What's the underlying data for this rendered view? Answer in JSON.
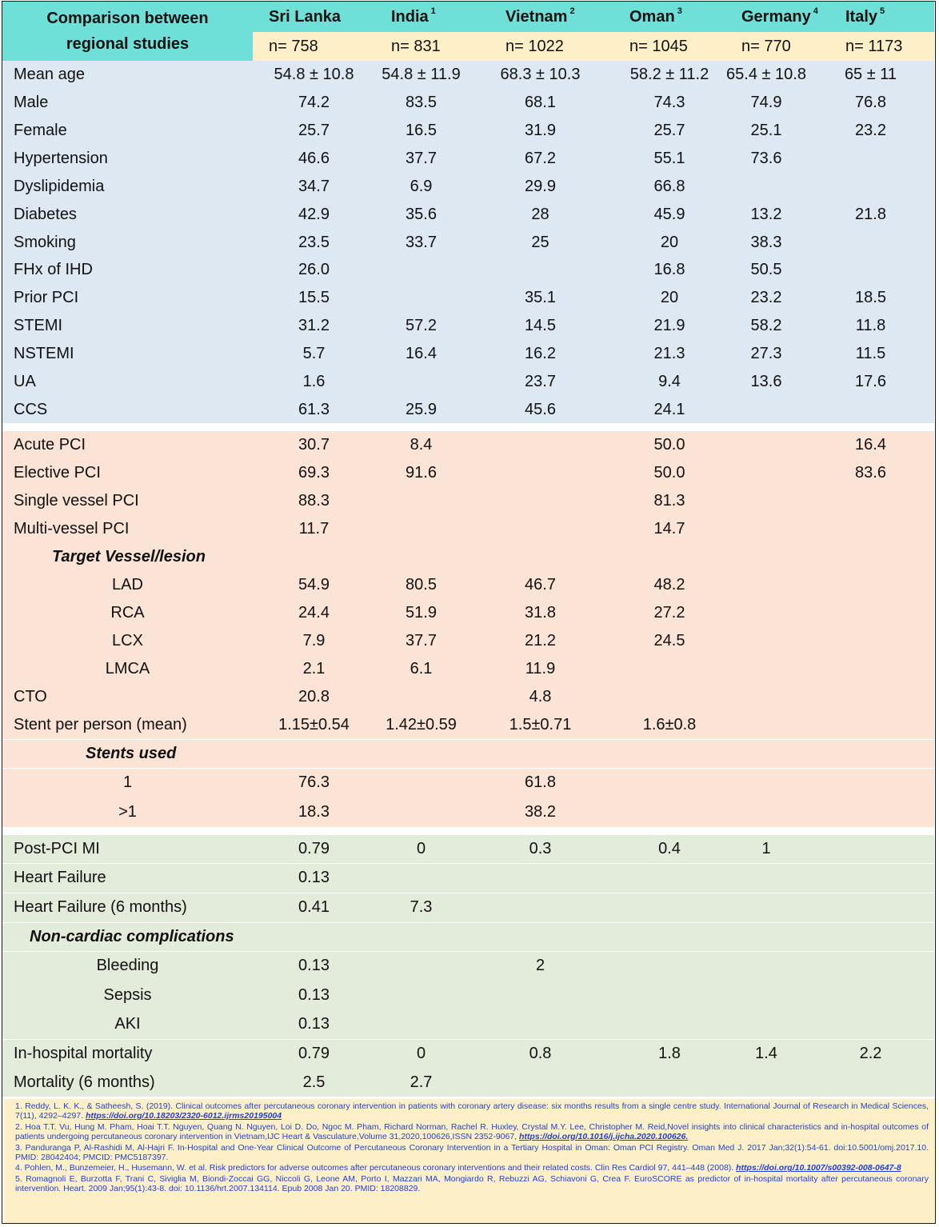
{
  "header": {
    "title_line1": "Comparison between",
    "title_line2": "regional studies",
    "countries": [
      {
        "name": "Sri Lanka",
        "sup": "",
        "n": "n= 758"
      },
      {
        "name": "India",
        "sup": "1",
        "n": "n= 831"
      },
      {
        "name": "Vietnam",
        "sup": "2",
        "n": "n= 1022"
      },
      {
        "name": "Oman",
        "sup": "3",
        "n": "n= 1045"
      },
      {
        "name": "Germany",
        "sup": "4",
        "n": "n= 770"
      },
      {
        "name": "Italy",
        "sup": "5",
        "n": "n= 1173"
      }
    ]
  },
  "sections": [
    {
      "name": "demographics",
      "color": "#dde8f3",
      "rows": [
        {
          "label": "Mean age",
          "values": [
            "54.8 ± 10.8",
            "54.8 ± 11.9",
            "68.3 ± 10.3",
            "58.2 ± 11.2",
            "65.4 ± 10.8",
            "65 ± 11"
          ]
        },
        {
          "label": "Male",
          "values": [
            "74.2",
            "83.5",
            "68.1",
            "74.3",
            "74.9",
            "76.8"
          ]
        },
        {
          "label": "Female",
          "values": [
            "25.7",
            "16.5",
            "31.9",
            "25.7",
            "25.1",
            "23.2"
          ]
        },
        {
          "label": "Hypertension",
          "values": [
            "46.6",
            "37.7",
            "67.2",
            "55.1",
            "73.6",
            ""
          ]
        },
        {
          "label": "Dyslipidemia",
          "values": [
            "34.7",
            "6.9",
            "29.9",
            "66.8",
            "",
            ""
          ]
        },
        {
          "label": "Diabetes",
          "values": [
            "42.9",
            "35.6",
            "28",
            "45.9",
            "13.2",
            "21.8"
          ]
        },
        {
          "label": "Smoking",
          "values": [
            "23.5",
            "33.7",
            "25",
            "20",
            "38.3",
            ""
          ]
        },
        {
          "label": "FHx of IHD",
          "values": [
            "26.0",
            "",
            "",
            "16.8",
            "50.5",
            ""
          ]
        },
        {
          "label": "Prior PCI",
          "values": [
            "15.5",
            "",
            "35.1",
            "20",
            "23.2",
            "18.5"
          ]
        },
        {
          "label": "STEMI",
          "values": [
            "31.2",
            "57.2",
            "14.5",
            "21.9",
            "58.2",
            "11.8"
          ]
        },
        {
          "label": "NSTEMI",
          "values": [
            "5.7",
            "16.4",
            "16.2",
            "21.3",
            "27.3",
            "11.5"
          ]
        },
        {
          "label": "UA",
          "values": [
            "1.6",
            "",
            "23.7",
            "9.4",
            "13.6",
            "17.6"
          ]
        },
        {
          "label": "CCS",
          "values": [
            "61.3",
            "25.9",
            "45.6",
            "24.1",
            "",
            ""
          ]
        }
      ]
    },
    {
      "name": "procedure",
      "color": "#fbe3d6",
      "rows": [
        {
          "label": "Acute PCI",
          "values": [
            "30.7",
            "8.4",
            "",
            "50.0",
            "",
            "16.4"
          ]
        },
        {
          "label": "Elective PCI",
          "values": [
            "69.3",
            "91.6",
            "",
            "50.0",
            "",
            "83.6"
          ]
        },
        {
          "label": "Single vessel PCI",
          "values": [
            "88.3",
            "",
            "",
            "81.3",
            "",
            ""
          ]
        },
        {
          "label": "Multi-vessel PCI",
          "values": [
            "11.7",
            "",
            "",
            "14.7",
            "",
            ""
          ]
        },
        {
          "label": "Target Vessel/lesion",
          "values": [
            "",
            "",
            "",
            "",
            "",
            ""
          ]
        },
        {
          "label": "LAD",
          "values": [
            "54.9",
            "80.5",
            "46.7",
            "48.2",
            "",
            ""
          ]
        },
        {
          "label": "RCA",
          "values": [
            "24.4",
            "51.9",
            "31.8",
            "27.2",
            "",
            ""
          ]
        },
        {
          "label": "LCX",
          "values": [
            "7.9",
            "37.7",
            "21.2",
            "24.5",
            "",
            ""
          ]
        },
        {
          "label": "LMCA",
          "values": [
            "2.1",
            "6.1",
            "11.9",
            "",
            "",
            ""
          ]
        },
        {
          "label": "CTO",
          "values": [
            "20.8",
            "",
            "4.8",
            "",
            "",
            ""
          ]
        },
        {
          "label": "Stent per person (mean)",
          "values": [
            "1.15±0.54",
            "1.42±0.59",
            "1.5±0.71",
            "1.6±0.8",
            "",
            ""
          ]
        },
        {
          "label": "Stents used",
          "values": [
            "",
            "",
            "",
            "",
            "",
            ""
          ]
        },
        {
          "label": "1",
          "values": [
            "76.3",
            "",
            "61.8",
            "",
            "",
            ""
          ]
        },
        {
          "label": ">1",
          "values": [
            "18.3",
            "",
            "38.2",
            "",
            "",
            ""
          ]
        }
      ]
    },
    {
      "name": "outcomes",
      "color": "#e3ecda",
      "rows": [
        {
          "label": "Post-PCI MI",
          "values": [
            "0.79",
            "0",
            "0.3",
            "0.4",
            "1",
            ""
          ]
        },
        {
          "label": "Heart Failure",
          "values": [
            "0.13",
            "",
            "",
            "",
            "",
            ""
          ]
        },
        {
          "label": "Heart Failure (6 months)",
          "values": [
            "0.41",
            "7.3",
            "",
            "",
            "",
            ""
          ]
        },
        {
          "label": "Non-cardiac complications",
          "values": [
            "",
            "",
            "",
            "",
            "",
            ""
          ]
        },
        {
          "label": "Bleeding",
          "values": [
            "0.13",
            "",
            "2",
            "",
            "",
            ""
          ]
        },
        {
          "label": "Sepsis",
          "values": [
            "0.13",
            "",
            "",
            "",
            "",
            ""
          ]
        },
        {
          "label": "AKI",
          "values": [
            "0.13",
            "",
            "",
            "",
            "",
            ""
          ]
        },
        {
          "label": "In-hospital mortality",
          "values": [
            "0.79",
            "0",
            "0.8",
            "1.8",
            "1.4",
            "2.2"
          ]
        },
        {
          "label": "Mortality (6 months)",
          "values": [
            "2.5",
            "2.7",
            "",
            "",
            "",
            ""
          ]
        }
      ]
    }
  ],
  "references": [
    {
      "text": "1. Reddy, L. K. K., & Satheesh, S. (2019). Clinical outcomes after percutaneous coronary intervention in patients with coronary artery disease: six months results from a single centre study. International Journal of Research in Medical Sciences, 7(11), 4292–4297. ",
      "doi": "https://doi.org/10.18203/2320-6012.ijrms20195004"
    },
    {
      "text": "2. Hoa T.T. Vu, Hung M. Pham, Hoai T.T. Nguyen, Quang N. Nguyen, Loi D. Do, Ngoc M. Pham, Richard Norman, Rachel R. Huxley, Crystal M.Y. Lee, Christopher M. Reid,Novel insights into clinical characteristics and in-hospital outcomes of patients undergoing percutaneous coronary intervention in Vietnam,IJC Heart & Vasculature,Volume 31,2020,100626,ISSN 2352-9067, ",
      "doi": "https://doi.org/10.1016/j.ijcha.2020.100626."
    },
    {
      "text": "3. Panduranga P, Al-Rashidi M, Al-Hajri F. In-Hospital and One-Year Clinical Outcome of Percutaneous Coronary Intervention in a Tertiary Hospital in Oman: Oman PCI Registry. Oman Med J. 2017 Jan;32(1):54-61. doi:10.5001/omj.2017.10. PMID: 28042404; PMCID: PMC5187397.",
      "doi": ""
    },
    {
      "text": "4. Pohlen, M., Bunzemeier, H., Husemann, W. et al. Risk predictors for adverse outcomes after percutaneous coronary interventions and their related costs. Clin Res Cardiol 97, 441–448 (2008). ",
      "doi": "https://doi.org/10.1007/s00392-008-0647-8"
    },
    {
      "text": "5. Romagnoli E, Burzotta F, Trani C, Siviglia M, Biondi-Zoccai GG, Niccoli G, Leone AM, Porto I, Mazzari MA, Mongiardo R, Rebuzzi AG, Schiavoni G, Crea F. EuroSCORE as predictor of in-hospital mortality after percutaneous coronary intervention. Heart. 2009 Jan;95(1):43-8. doi: 10.1136/hrt.2007.134114. Epub 2008 Jan 20. PMID: 18208829.",
      "doi": ""
    }
  ]
}
